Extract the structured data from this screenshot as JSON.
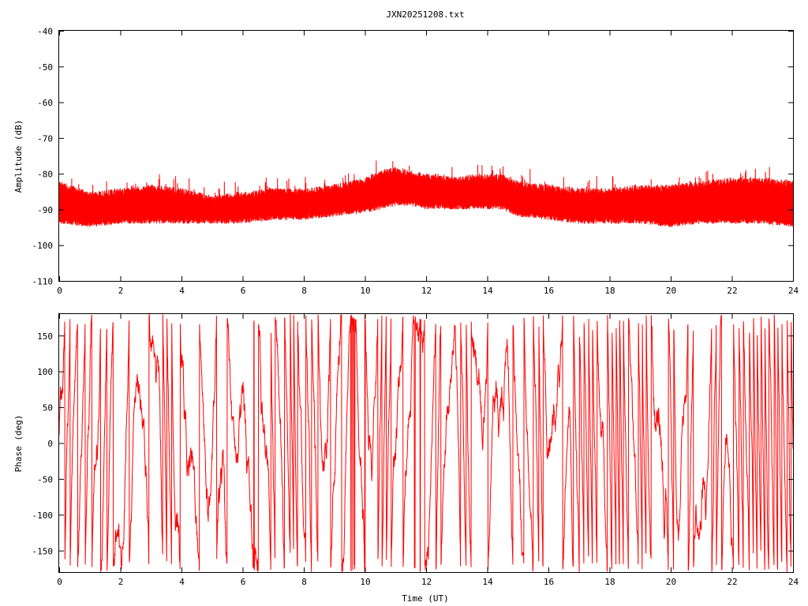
{
  "chart_data": [
    {
      "type": "line",
      "title": "JXN20251208.txt",
      "xlabel": "",
      "ylabel": "Amplitude (dB)",
      "xlim": [
        0,
        24
      ],
      "ylim": [
        -110,
        -40
      ],
      "x_ticks": [
        "0",
        "2",
        "4",
        "6",
        "8",
        "10",
        "12",
        "14",
        "16",
        "18",
        "20",
        "22",
        "24"
      ],
      "y_ticks": [
        "-40",
        "-50",
        "-60",
        "-70",
        "-80",
        "-90",
        "-100",
        "-110"
      ],
      "grid": false,
      "series": [
        {
          "color": "#ff0000",
          "envelope_x": [
            0,
            1,
            2,
            3,
            4,
            5,
            6,
            7,
            8,
            9,
            10,
            10.5,
            11,
            11.5,
            12,
            12.5,
            13,
            13.5,
            14,
            14.5,
            15,
            16,
            17,
            18,
            19,
            20,
            21,
            22,
            23,
            24
          ],
          "upper": [
            -82,
            -85,
            -84,
            -83,
            -84,
            -86,
            -85,
            -84,
            -84,
            -83,
            -81,
            -79,
            -78,
            -79,
            -80,
            -80,
            -81,
            -80,
            -80,
            -80,
            -82,
            -83,
            -84,
            -84,
            -83,
            -83,
            -82,
            -81,
            -81,
            -82
          ],
          "lower": [
            -94,
            -95,
            -94,
            -94,
            -94,
            -94,
            -94,
            -93,
            -93,
            -92,
            -91,
            -90,
            -89,
            -89,
            -90,
            -90,
            -90,
            -90,
            -90,
            -90,
            -92,
            -93,
            -94,
            -94,
            -94,
            -95,
            -94,
            -94,
            -94,
            -95
          ]
        }
      ]
    },
    {
      "type": "line",
      "title": "",
      "xlabel": "Time (UT)",
      "ylabel": "Phase (deg)",
      "xlim": [
        0,
        24
      ],
      "ylim": [
        -180,
        180
      ],
      "x_ticks": [
        "0",
        "2",
        "4",
        "6",
        "8",
        "10",
        "12",
        "14",
        "16",
        "18",
        "20",
        "22",
        "24"
      ],
      "y_ticks": [
        "150",
        "100",
        "50",
        "0",
        "-50",
        "-100",
        "-150"
      ],
      "grid": false,
      "series": [
        {
          "color": "#ff0000",
          "wrap_range": [
            -180,
            180
          ]
        }
      ]
    }
  ]
}
